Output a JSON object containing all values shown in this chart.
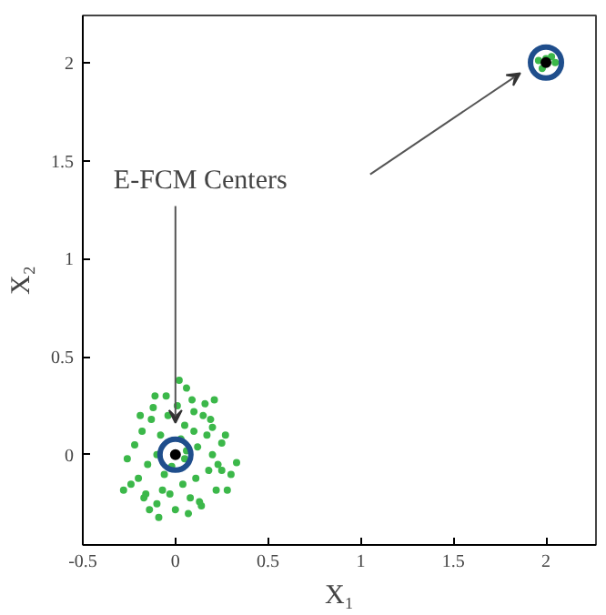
{
  "chart_data": {
    "type": "scatter",
    "xlabel": "X₁",
    "ylabel": "X₂",
    "xlim": [
      -0.5,
      2.27
    ],
    "ylim": [
      -0.46,
      2.24
    ],
    "xticks": [
      -0.5,
      0,
      0.5,
      1,
      1.5,
      2
    ],
    "yticks": [
      0,
      0.5,
      1,
      1.5,
      2
    ],
    "grid": false,
    "marker": "circle",
    "annotations": [
      "E-FCM Centers"
    ],
    "series": [
      {
        "color": "#3cb84a",
        "x": [
          0.02,
          0.06,
          -0.05,
          0.1,
          -0.12,
          0.15,
          -0.18,
          0.2,
          -0.22,
          0.25,
          -0.26,
          0.3,
          0.05,
          -0.08,
          0.12,
          -0.15,
          0.18,
          -0.2,
          0.22,
          -0.03,
          0.08,
          -0.1,
          0.14,
          -0.16,
          0.01,
          0.04,
          -0.06,
          0.09,
          -0.13,
          0.17,
          0.2,
          -0.24,
          0.27,
          0.28,
          -0.1,
          0.0,
          0.07,
          -0.04,
          0.11,
          -0.19,
          0.23,
          0.13,
          -0.07,
          0.03,
          -0.02,
          0.16,
          -0.11,
          0.19,
          -0.17,
          0.25,
          0.33,
          -0.28,
          0.05,
          0.1,
          -0.14,
          0.21,
          -0.09,
          0.06,
          1.96,
          2.05,
          1.98,
          2.03,
          2.0
        ],
        "values": [
          0.38,
          0.34,
          0.3,
          0.22,
          0.24,
          0.2,
          0.12,
          0.14,
          0.05,
          0.06,
          -0.02,
          -0.1,
          0.15,
          0.1,
          0.04,
          -0.05,
          -0.08,
          -0.12,
          -0.18,
          -0.2,
          -0.22,
          -0.25,
          -0.26,
          -0.2,
          0.25,
          -0.15,
          -0.1,
          0.28,
          0.18,
          0.1,
          0.0,
          -0.15,
          0.1,
          -0.18,
          0.0,
          -0.28,
          -0.3,
          0.2,
          -0.12,
          0.2,
          -0.05,
          -0.24,
          -0.18,
          0.08,
          -0.06,
          0.26,
          0.3,
          0.18,
          -0.22,
          -0.08,
          -0.04,
          -0.18,
          -0.02,
          0.12,
          -0.28,
          0.28,
          -0.32,
          0.02,
          2.01,
          2.0,
          1.97,
          2.03,
          2.02
        ]
      },
      {
        "color": "#1f4e8c",
        "x": [
          0,
          2
        ],
        "values": [
          0,
          2
        ]
      }
    ]
  }
}
